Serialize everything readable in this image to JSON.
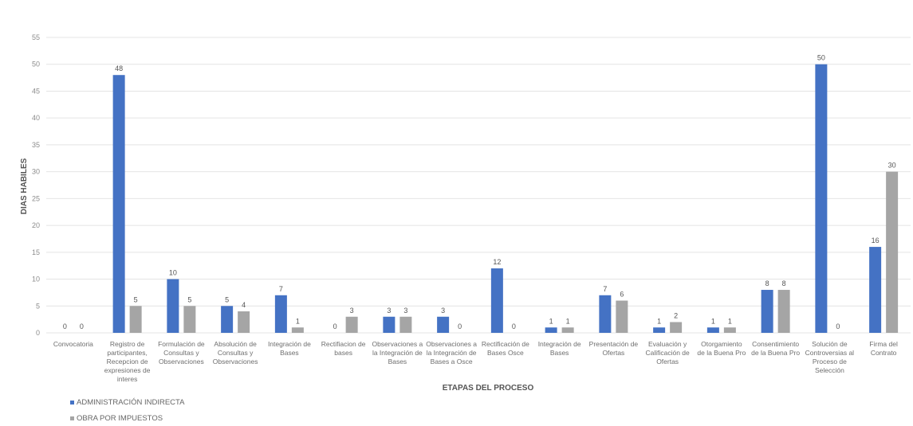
{
  "chart_data": {
    "type": "bar",
    "xlabel": "ETAPAS DEL PROCESO",
    "ylabel": "DIAS HABILES",
    "ylim": [
      0,
      55
    ],
    "yticks": [
      0,
      5,
      10,
      15,
      20,
      25,
      30,
      35,
      40,
      45,
      50,
      55
    ],
    "grid": true,
    "legend_position": "bottom-left",
    "categories": [
      [
        "Convocatoria"
      ],
      [
        "Registro de",
        "participantes,",
        "Recepcion de",
        "expresiones de",
        "interes"
      ],
      [
        "Formulación de",
        "Consultas y",
        "Observaciones"
      ],
      [
        "Absolución de",
        "Consultas y",
        "Observaciones"
      ],
      [
        "Integración de",
        "Bases"
      ],
      [
        "Rectifiacion de",
        "bases"
      ],
      [
        "Observaciones a",
        "la Integración de",
        "Bases"
      ],
      [
        "Observaciones a",
        "la Integración de",
        "Bases a  Osce"
      ],
      [
        "Rectificación de",
        "Bases Osce"
      ],
      [
        "Integración de",
        "Bases"
      ],
      [
        "Presentación de",
        "Ofertas"
      ],
      [
        "Evaluación y",
        "Calificación de",
        "Ofertas"
      ],
      [
        "Otorgamiento",
        "de la Buena Pro"
      ],
      [
        "Consentimiento",
        "de la Buena Pro"
      ],
      [
        "Solución de",
        "Controversias al",
        "Proceso de",
        "Selección"
      ],
      [
        "Firma del",
        "Contrato"
      ]
    ],
    "series": [
      {
        "name": "ADMINISTRACIÓN INDIRECTA",
        "color": "#4472c4",
        "values": [
          0,
          48,
          10,
          5,
          7,
          0,
          3,
          3,
          12,
          1,
          7,
          1,
          1,
          8,
          50,
          16
        ]
      },
      {
        "name": "OBRA POR IMPUESTOS",
        "color": "#a5a5a5",
        "values": [
          0,
          5,
          5,
          4,
          1,
          3,
          3,
          0,
          0,
          1,
          6,
          2,
          1,
          8,
          0,
          30
        ]
      }
    ]
  }
}
